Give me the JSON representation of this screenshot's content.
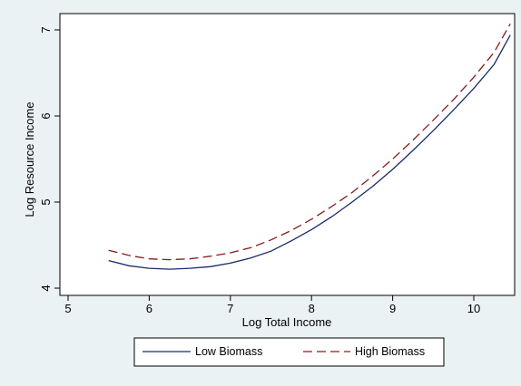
{
  "chart_data": {
    "type": "line",
    "xlabel": "Log Total Income",
    "ylabel": "Log Resource Income",
    "xlim": [
      5,
      10.5
    ],
    "ylim": [
      3.95,
      7.1
    ],
    "xticks": [
      5,
      6,
      7,
      8,
      9,
      10
    ],
    "yticks": [
      4,
      5,
      6,
      7
    ],
    "grid": false,
    "legend": "bottom",
    "x": [
      5.5,
      5.75,
      6.0,
      6.25,
      6.5,
      6.75,
      7.0,
      7.25,
      7.5,
      7.75,
      8.0,
      8.25,
      8.5,
      8.75,
      9.0,
      9.25,
      9.5,
      9.75,
      10.0,
      10.25,
      10.45
    ],
    "series": [
      {
        "name": "Low Biomass",
        "style": "solid",
        "color": "#1a2a6c",
        "values": [
          4.32,
          4.26,
          4.23,
          4.22,
          4.23,
          4.25,
          4.29,
          4.35,
          4.43,
          4.55,
          4.68,
          4.83,
          5.0,
          5.18,
          5.38,
          5.6,
          5.83,
          6.07,
          6.32,
          6.6,
          6.94
        ]
      },
      {
        "name": "High Biomass",
        "style": "dashed",
        "color": "#8b1a1a",
        "values": [
          4.44,
          4.38,
          4.34,
          4.33,
          4.34,
          4.37,
          4.41,
          4.47,
          4.56,
          4.67,
          4.8,
          4.95,
          5.11,
          5.3,
          5.5,
          5.72,
          5.95,
          6.19,
          6.45,
          6.74,
          7.07
        ]
      }
    ]
  }
}
